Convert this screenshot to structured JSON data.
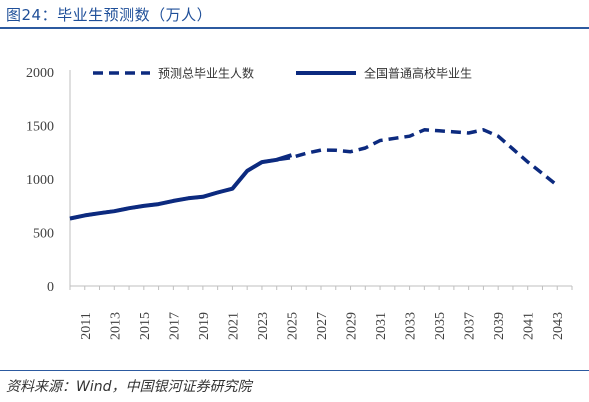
{
  "header": {
    "title": "图24：毕业生预测数（万人）"
  },
  "footer": {
    "source": "资料来源：Wind，中国银河证券研究院"
  },
  "colors": {
    "series": "#0c2a7f",
    "rule": "#2c5aa0",
    "title": "#1f4f99",
    "axis": "#bfbfbf"
  },
  "chart_data": {
    "type": "line",
    "title": "",
    "xlabel": "",
    "ylabel": "",
    "ylim": [
      0,
      2000
    ],
    "yticks": [
      0,
      500,
      1000,
      1500,
      2000
    ],
    "xlim": [
      2010,
      2044
    ],
    "xticks": [
      "2011",
      "2013",
      "2015",
      "2017",
      "2019",
      "2021",
      "2023",
      "2025",
      "2027",
      "2029",
      "2031",
      "2033",
      "2035",
      "2037",
      "2039",
      "2041",
      "2043"
    ],
    "grid": false,
    "legend": "top",
    "series": [
      {
        "name": "预测总毕业生人数",
        "style": "dashed",
        "x": [
          2010,
          2011,
          2012,
          2013,
          2014,
          2015,
          2016,
          2017,
          2018,
          2019,
          2020,
          2021,
          2022,
          2023,
          2024,
          2025,
          2026,
          2027,
          2028,
          2029,
          2030,
          2031,
          2032,
          2033,
          2034,
          2035,
          2036,
          2037,
          2038,
          2039,
          2040,
          2041,
          2042,
          2043
        ],
        "y": [
          630,
          660,
          680,
          700,
          727,
          749,
          765,
          795,
          820,
          834,
          874,
          909,
          1076,
          1158,
          1179,
          1200,
          1240,
          1270,
          1268,
          1255,
          1290,
          1360,
          1380,
          1400,
          1460,
          1450,
          1440,
          1430,
          1460,
          1400,
          1280,
          1160,
          1050,
          940
        ]
      },
      {
        "name": "全国普通高校毕业生",
        "style": "solid",
        "x": [
          2010,
          2011,
          2012,
          2013,
          2014,
          2015,
          2016,
          2017,
          2018,
          2019,
          2020,
          2021,
          2022,
          2023,
          2024,
          2025
        ],
        "y": [
          631,
          660,
          680,
          699,
          727,
          749,
          765,
          795,
          820,
          834,
          874,
          909,
          1076,
          1158,
          1179,
          1222
        ]
      }
    ]
  }
}
